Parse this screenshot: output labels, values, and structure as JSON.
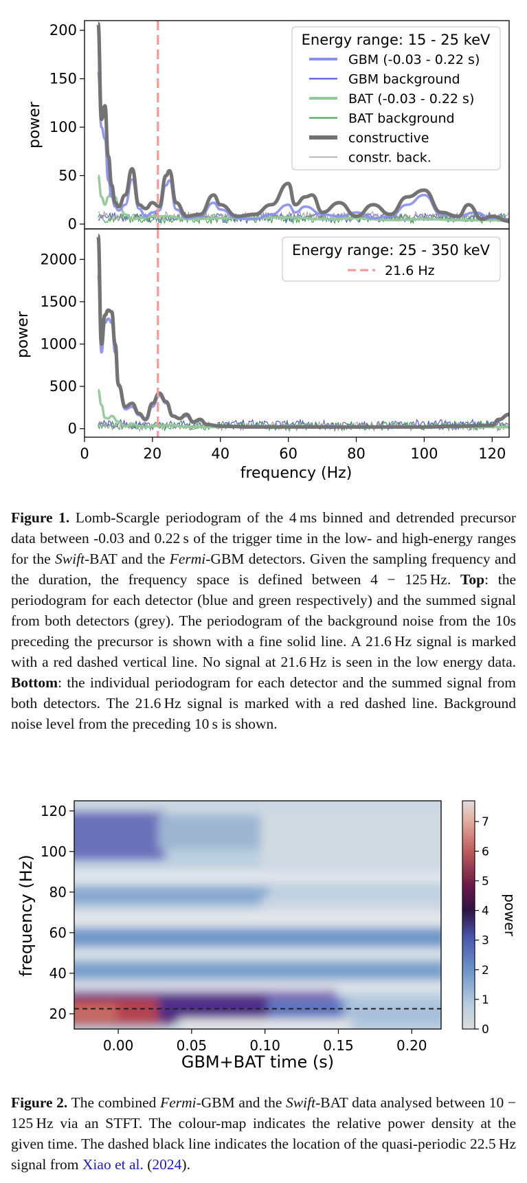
{
  "figure1": {
    "top": {
      "legend_title": "Energy range: 15 - 25 keV",
      "legend": [
        {
          "label": "GBM (-0.03 - 0.22 s)",
          "color": "#8c91ef"
        },
        {
          "label": "GBM background",
          "color": "#4a4ad6"
        },
        {
          "label": "BAT (-0.03 - 0.22 s)",
          "color": "#93c998"
        },
        {
          "label": "BAT background",
          "color": "#3aa04a"
        },
        {
          "label": "constructive",
          "color": "#737373"
        },
        {
          "label": "constr. back.",
          "color": "#a0a0a0"
        }
      ],
      "ylabel": "power",
      "yticks": [
        "0",
        "50",
        "100",
        "150",
        "200"
      ]
    },
    "bottom": {
      "legend_title": "Energy range: 25 - 350 keV",
      "legend": [
        {
          "label": "21.6 Hz",
          "color": "#f59a9a"
        }
      ],
      "ylabel": "power",
      "yticks": [
        "0",
        "500",
        "1000",
        "1500",
        "2000"
      ]
    },
    "xlabel": "frequency (Hz)",
    "xticks": [
      "0",
      "20",
      "40",
      "60",
      "80",
      "100",
      "120"
    ],
    "caption": {
      "label": "Figure 1.",
      "p1": "Lomb-Scargle periodogram of the 4 ms binned and detrended precursor data between -0.03 and 0.22 s of the trigger time in the low- and high-energy ranges for the ",
      "swift": "Swift",
      "p2": "-BAT and the ",
      "fermi": "Fermi",
      "p3": "-GBM detectors. Given the sampling frequency and the duration, the frequency space is defined between 4 − 125 Hz. ",
      "top_label": "Top",
      "p4": ": the periodogram for each detector (blue and green respectively) and the summed signal from both detectors (grey). The periodogram of the background noise from the 10s preceding the precursor is shown with a fine solid line. A 21.6 Hz signal is marked with a red dashed vertical line. No signal at 21.6 Hz is seen in the low energy data. ",
      "bottom_label": "Bottom",
      "p5": ": the individual periodogram for each detector and the summed signal from both detectors. The 21.6 Hz signal is marked with a red dashed line. Background noise level from the preceding 10 s is shown."
    }
  },
  "chart_data": [
    {
      "type": "line",
      "panel": "top",
      "title": "Energy range: 15 - 25 keV",
      "xlabel": "frequency (Hz)",
      "ylabel": "power",
      "xlim": [
        0,
        125
      ],
      "ylim": [
        -5,
        210
      ],
      "vline": {
        "x": 21.6,
        "label": "21.6 Hz",
        "style": "dashed",
        "color": "#f59a9a"
      },
      "series": [
        {
          "name": "GBM (-0.03 - 0.22 s)",
          "color": "#8c91ef",
          "x": [
            4,
            5,
            6,
            7,
            8,
            9,
            10,
            12,
            14,
            16,
            18,
            20,
            22,
            24,
            25,
            27,
            30,
            34,
            38,
            40,
            45,
            50,
            55,
            60,
            62,
            65,
            70,
            75,
            80,
            85,
            90,
            95,
            100,
            105,
            110,
            115,
            120,
            125
          ],
          "y": [
            158,
            100,
            88,
            45,
            28,
            18,
            14,
            20,
            46,
            16,
            8,
            12,
            14,
            40,
            45,
            15,
            6,
            8,
            22,
            15,
            6,
            5,
            10,
            20,
            12,
            18,
            10,
            8,
            12,
            6,
            8,
            20,
            30,
            10,
            8,
            12,
            6,
            5
          ]
        },
        {
          "name": "GBM background",
          "color": "#4a4ad6",
          "y_level": 5
        },
        {
          "name": "BAT (-0.03 - 0.22 s)",
          "color": "#93c998",
          "x": [
            4,
            5,
            6,
            7,
            8,
            9,
            10,
            12,
            14,
            16,
            20,
            25,
            30,
            40,
            50,
            60,
            70,
            80,
            90,
            100,
            110,
            120,
            125
          ],
          "y": [
            50,
            28,
            20,
            28,
            35,
            28,
            20,
            10,
            5,
            6,
            8,
            8,
            5,
            6,
            6,
            7,
            5,
            6,
            4,
            5,
            4,
            4,
            3
          ]
        },
        {
          "name": "BAT background",
          "color": "#3aa04a",
          "y_level": 4
        },
        {
          "name": "constructive",
          "color": "#737373",
          "x": [
            4,
            5,
            6,
            7,
            8,
            9,
            10,
            12,
            14,
            16,
            18,
            20,
            22,
            24,
            25,
            27,
            30,
            34,
            38,
            40,
            45,
            50,
            55,
            60,
            62,
            65,
            67,
            70,
            75,
            80,
            85,
            90,
            95,
            100,
            105,
            110,
            113,
            117,
            120,
            125
          ],
          "y": [
            207,
            108,
            122,
            70,
            40,
            22,
            18,
            30,
            57,
            20,
            16,
            22,
            18,
            50,
            55,
            22,
            8,
            10,
            30,
            20,
            8,
            10,
            20,
            42,
            20,
            28,
            30,
            12,
            22,
            8,
            20,
            10,
            28,
            35,
            12,
            8,
            20,
            5,
            8,
            3
          ]
        },
        {
          "name": "constr. back.",
          "color": "#a0a0a0",
          "y_level": 6
        }
      ]
    },
    {
      "type": "line",
      "panel": "bottom",
      "title": "Energy range: 25 - 350 keV",
      "xlabel": "frequency (Hz)",
      "ylabel": "power",
      "xlim": [
        0,
        125
      ],
      "ylim": [
        -100,
        2360
      ],
      "vline": {
        "x": 21.6,
        "label": "21.6 Hz",
        "style": "dashed",
        "color": "#f59a9a"
      },
      "series": [
        {
          "name": "GBM (-0.03 - 0.22 s)",
          "color": "#8c91ef",
          "x": [
            4,
            5,
            6,
            7,
            8,
            9,
            10,
            12,
            14,
            16,
            18,
            20,
            22,
            24,
            26,
            28,
            30,
            32,
            34,
            36,
            40,
            50,
            60,
            80,
            100,
            110,
            120,
            122,
            125
          ],
          "y": [
            1820,
            900,
            1250,
            1300,
            1250,
            900,
            500,
            230,
            260,
            160,
            100,
            260,
            390,
            300,
            150,
            120,
            150,
            70,
            100,
            50,
            30,
            20,
            20,
            20,
            20,
            30,
            40,
            100,
            160
          ]
        },
        {
          "name": "GBM background",
          "color": "#4a4ad6",
          "y_level": 30
        },
        {
          "name": "BAT (-0.03 - 0.22 s)",
          "color": "#93c998",
          "x": [
            4,
            5,
            6,
            7,
            8,
            10,
            12,
            14,
            16,
            18,
            20,
            25,
            30,
            40,
            60,
            80,
            100,
            125
          ],
          "y": [
            460,
            280,
            130,
            120,
            150,
            80,
            30,
            60,
            30,
            20,
            30,
            40,
            20,
            20,
            30,
            20,
            20,
            20
          ]
        },
        {
          "name": "BAT background",
          "color": "#3aa04a",
          "y_level": 15
        },
        {
          "name": "constructive",
          "color": "#737373",
          "x": [
            4,
            5,
            6,
            7,
            8,
            9,
            10,
            12,
            14,
            16,
            18,
            20,
            22,
            24,
            26,
            28,
            30,
            32,
            34,
            36,
            40,
            50,
            60,
            80,
            100,
            110,
            120,
            122,
            125
          ],
          "y": [
            2280,
            1000,
            1340,
            1400,
            1380,
            1000,
            520,
            260,
            300,
            180,
            110,
            300,
            420,
            320,
            150,
            120,
            170,
            80,
            110,
            50,
            30,
            20,
            20,
            20,
            20,
            30,
            40,
            110,
            170
          ]
        },
        {
          "name": "constr. back.",
          "color": "#a0a0a0",
          "y_level": 10
        }
      ]
    },
    {
      "type": "heatmap",
      "panel": "stft",
      "xlabel": "GBM+BAT time (s)",
      "ylabel": "frequency (Hz)",
      "xlim": [
        -0.03,
        0.22
      ],
      "ylim": [
        12.5,
        125
      ],
      "xticks": [
        "0.00",
        "0.05",
        "0.10",
        "0.15",
        "0.20"
      ],
      "yticks": [
        "20",
        "40",
        "60",
        "80",
        "100",
        "120"
      ],
      "colorbar": {
        "label": "power",
        "ticks": [
          "0",
          "1",
          "2",
          "3",
          "4",
          "5",
          "6",
          "7"
        ],
        "range": [
          0,
          7.7
        ]
      },
      "hline": {
        "y": 22.5,
        "style": "dashed",
        "color": "#222222"
      },
      "features": [
        {
          "t": -0.03,
          "t_end": 0.12,
          "f": 22,
          "power": 6.5
        },
        {
          "t": -0.03,
          "t_end": 0.04,
          "f": 115,
          "power": 3
        },
        {
          "t": -0.03,
          "t_end": 0.22,
          "f": 70,
          "power": 1.5
        },
        {
          "t": -0.03,
          "t_end": 0.22,
          "f": 50,
          "power": 1.3
        }
      ]
    }
  ],
  "figure2": {
    "caption": {
      "label": "Figure 2.",
      "p1": "The combined ",
      "fermi": "Fermi",
      "p2": "-GBM and the ",
      "swift": "Swift",
      "p3": "-BAT data analysed between 10 − 125 Hz via an STFT. The colour-map indicates the relative power density at the given time. The dashed black line indicates the location of the quasi-periodic 22.5 Hz signal from ",
      "cite_author": "Xiao et al.",
      "cite_open": " (",
      "cite_year": "2024",
      "cite_close": ")."
    }
  }
}
